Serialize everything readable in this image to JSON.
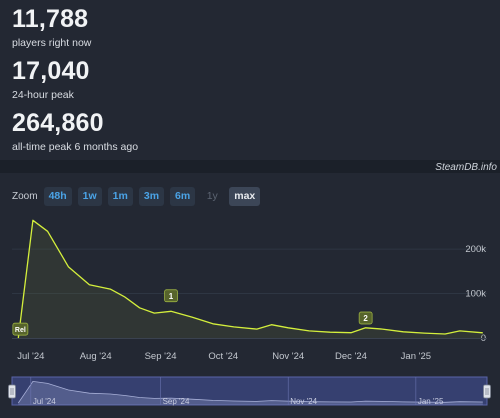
{
  "stats": [
    {
      "value": "11,788",
      "label": "players right now"
    },
    {
      "value": "17,040",
      "label": "24-hour peak"
    },
    {
      "value": "264,860",
      "label": "all-time peak 6 months ago"
    }
  ],
  "credit": "SteamDB.info",
  "zoom": {
    "label": "Zoom",
    "buttons": [
      {
        "label": "48h",
        "state": "enabled"
      },
      {
        "label": "1w",
        "state": "enabled"
      },
      {
        "label": "1m",
        "state": "enabled"
      },
      {
        "label": "3m",
        "state": "enabled"
      },
      {
        "label": "6m",
        "state": "enabled"
      },
      {
        "label": "1y",
        "state": "disabled"
      },
      {
        "label": "max",
        "state": "active"
      }
    ]
  },
  "chart_data": {
    "type": "area",
    "x_labels": [
      "Jul '24",
      "Aug '24",
      "Sep '24",
      "Oct '24",
      "Nov '24",
      "Dec '24",
      "Jan '25"
    ],
    "y_ticks": [
      {
        "value": 0,
        "label": "0"
      },
      {
        "value": 100000,
        "label": "100k"
      },
      {
        "value": 200000,
        "label": "200k"
      }
    ],
    "ylim": [
      0,
      270000
    ],
    "xlim": [
      "2024-06-22",
      "2025-02-04"
    ],
    "series": [
      {
        "color": "#d4ef3c",
        "points": [
          [
            "2024-06-25",
            0
          ],
          [
            "2024-06-29",
            150000
          ],
          [
            "2024-07-02",
            264860
          ],
          [
            "2024-07-09",
            240000
          ],
          [
            "2024-07-19",
            160000
          ],
          [
            "2024-07-29",
            120000
          ],
          [
            "2024-08-08",
            110000
          ],
          [
            "2024-08-15",
            92000
          ],
          [
            "2024-08-22",
            68000
          ],
          [
            "2024-08-29",
            56000
          ],
          [
            "2024-09-06",
            60000
          ],
          [
            "2024-09-16",
            47000
          ],
          [
            "2024-09-26",
            32000
          ],
          [
            "2024-10-06",
            25000
          ],
          [
            "2024-10-17",
            20000
          ],
          [
            "2024-10-24",
            30000
          ],
          [
            "2024-11-01",
            23000
          ],
          [
            "2024-11-11",
            16000
          ],
          [
            "2024-11-21",
            13000
          ],
          [
            "2024-12-01",
            12000
          ],
          [
            "2024-12-08",
            23000
          ],
          [
            "2024-12-16",
            20000
          ],
          [
            "2024-12-26",
            14000
          ],
          [
            "2025-01-05",
            11000
          ],
          [
            "2025-01-15",
            9000
          ],
          [
            "2025-01-22",
            16000
          ],
          [
            "2025-02-02",
            11788
          ]
        ]
      }
    ],
    "annotations": [
      {
        "label": "Rel",
        "date": "2024-06-26",
        "value": 20000
      },
      {
        "label": "1",
        "date": "2024-09-06",
        "value": 95000
      },
      {
        "label": "2",
        "date": "2024-12-08",
        "value": 45000
      }
    ],
    "navigator": {
      "x_labels": [
        "Jul '24",
        "Sep '24",
        "Nov '24",
        "Jan '25"
      ]
    }
  }
}
